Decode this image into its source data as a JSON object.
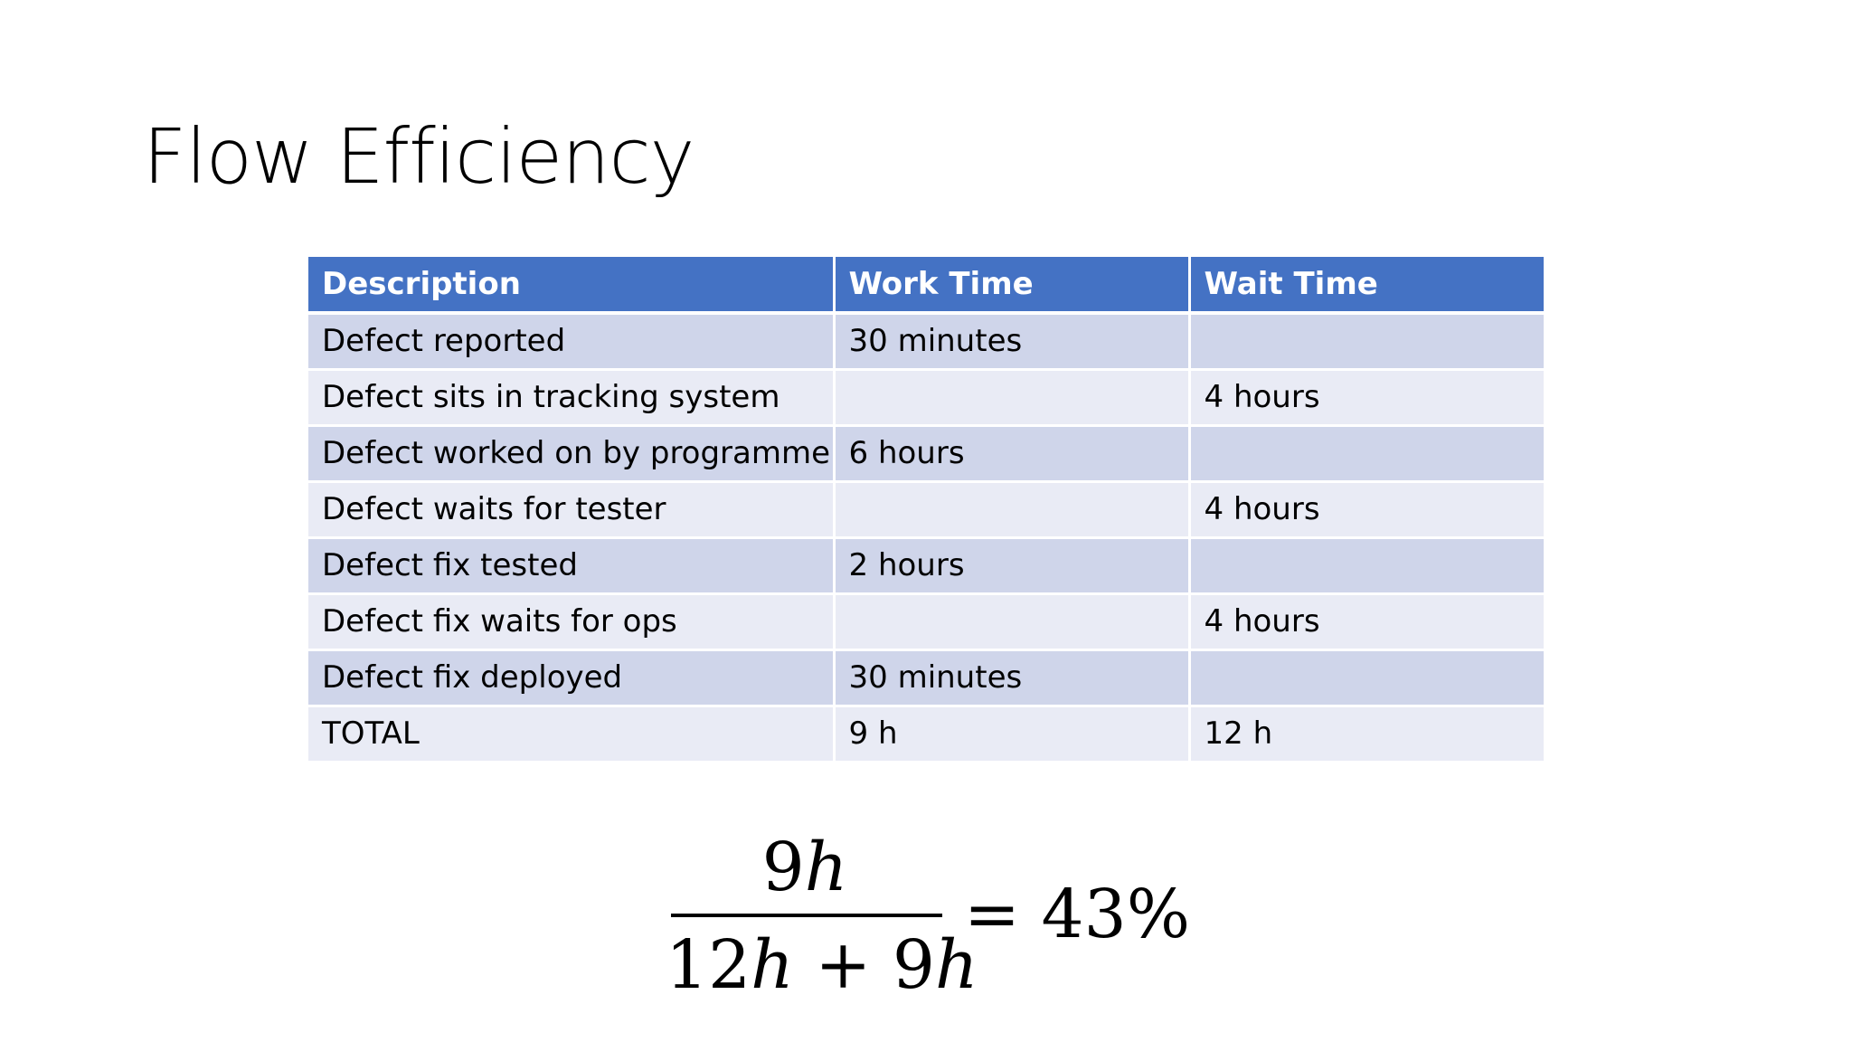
{
  "slide": {
    "title": "Flow Efficiency"
  },
  "table": {
    "headers": [
      "Description",
      "Work Time",
      "Wait Time"
    ],
    "rows": [
      {
        "description": "Defect reported",
        "work_time": "30 minutes",
        "wait_time": ""
      },
      {
        "description": "Defect sits in tracking system",
        "work_time": "",
        "wait_time": "4 hours"
      },
      {
        "description": "Defect worked on by programmer",
        "work_time": "6 hours",
        "wait_time": ""
      },
      {
        "description": "Defect waits for tester",
        "work_time": "",
        "wait_time": "4 hours"
      },
      {
        "description": "Defect fix tested",
        "work_time": "2 hours",
        "wait_time": ""
      },
      {
        "description": "Defect fix waits for ops",
        "work_time": "",
        "wait_time": "4 hours"
      },
      {
        "description": "Defect fix deployed",
        "work_time": "30 minutes",
        "wait_time": ""
      },
      {
        "description": "TOTAL",
        "work_time": "9 h",
        "wait_time": "12 h"
      }
    ],
    "header_color": "#4472c4",
    "band_color_dark": "#cfd5ea",
    "band_color_light": "#e9ebf5"
  },
  "formula": {
    "numerator_num": "9",
    "numerator_var": "h",
    "denominator_num1": "12",
    "denominator_var1": "h",
    "denominator_op": " + ",
    "denominator_num2": "9",
    "denominator_var2": "h",
    "equals": "= ",
    "result": "43%"
  }
}
